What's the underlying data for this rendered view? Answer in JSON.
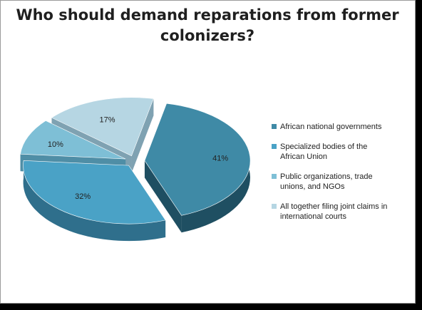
{
  "chart_data": {
    "type": "pie",
    "title": "Who should demand reparations from former colonizers?",
    "categories": [
      "African national governments",
      "Specialized bodies of the African Union",
      "Public organizations, trade unions, and NGOs",
      "All together filing joint claims in international courts"
    ],
    "values": [
      41,
      32,
      10,
      17
    ],
    "labels": [
      "41%",
      "32%",
      "10%",
      "17%"
    ],
    "colors": [
      "#3f8aa6",
      "#4aa2c6",
      "#7ebfd6",
      "#b6d6e3"
    ],
    "side_colors": [
      "#1f4f62",
      "#2f6f8c",
      "#4f8ea6",
      "#7fa2b2"
    ],
    "style": "3d-exploded",
    "legend": "right"
  }
}
